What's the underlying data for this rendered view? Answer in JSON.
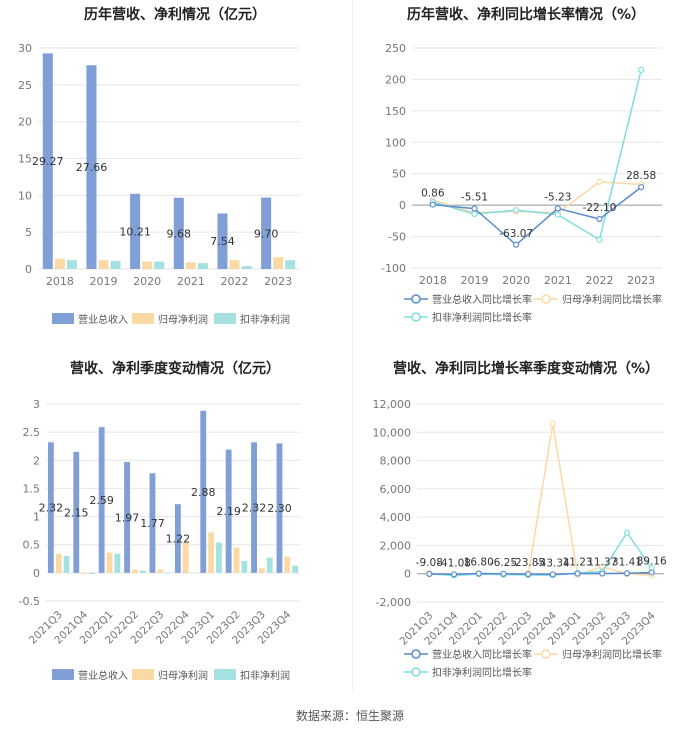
{
  "source": "数据来源：恒生聚源",
  "chart_data": [
    {
      "type": "bar",
      "title": "历年营收、净利情况（亿元）",
      "categories": [
        "2018",
        "2019",
        "2020",
        "2021",
        "2022",
        "2023"
      ],
      "ylim": [
        0,
        30
      ],
      "yticks": [
        0,
        5,
        10,
        15,
        20,
        25,
        30
      ],
      "series": [
        {
          "name": "营业总收入",
          "color": "#7f9fd6",
          "values": [
            29.27,
            27.66,
            10.21,
            9.68,
            7.54,
            9.7
          ],
          "labels": [
            "29.27",
            "27.66",
            "10.21",
            "9.68",
            "7.54",
            "9.70"
          ]
        },
        {
          "name": "归母净利润",
          "color": "#fbd9a4",
          "values": [
            1.4,
            1.2,
            1.0,
            0.9,
            1.2,
            1.6
          ]
        },
        {
          "name": "扣非净利润",
          "color": "#a6e1e2",
          "values": [
            1.2,
            1.1,
            1.0,
            0.8,
            0.4,
            1.2
          ]
        }
      ],
      "grid": true,
      "legend": "bottom"
    },
    {
      "type": "line",
      "title": "历年营收、净利同比增长率情况（%）",
      "categories": [
        "2018",
        "2019",
        "2020",
        "2021",
        "2022",
        "2023"
      ],
      "ylim": [
        -100,
        250
      ],
      "yticks": [
        -100,
        -50,
        0,
        50,
        100,
        150,
        200,
        250
      ],
      "series": [
        {
          "name": "营业总收入同比增长率",
          "color": "#5b8bd0",
          "values": [
            0.86,
            -5.51,
            -63.07,
            -5.23,
            -22.1,
            28.58
          ],
          "labels": [
            "0.86",
            "-5.51",
            "-63.07",
            "-5.23",
            "-22.10",
            "28.58"
          ]
        },
        {
          "name": "归母净利润同比增长率",
          "color": "#fbd9a4",
          "values": [
            8,
            -12,
            -10,
            -12,
            37,
            33
          ]
        },
        {
          "name": "扣非净利润同比增长率",
          "color": "#7fdde0",
          "values": [
            5,
            -14,
            -8,
            -15,
            -55,
            215
          ]
        }
      ],
      "grid": true,
      "legend": "bottom"
    },
    {
      "type": "bar",
      "title": "营收、净利季度变动情况（亿元）",
      "categories": [
        "2021Q3",
        "2021Q4",
        "2022Q1",
        "2022Q2",
        "2022Q3",
        "2022Q4",
        "2023Q1",
        "2023Q2",
        "2023Q3",
        "2023Q4"
      ],
      "ylim": [
        -0.5,
        3
      ],
      "yticks": [
        -0.5,
        0,
        0.5,
        1,
        1.5,
        2,
        2.5,
        3
      ],
      "series": [
        {
          "name": "营业总收入",
          "color": "#7f9fd6",
          "values": [
            2.32,
            2.15,
            2.59,
            1.97,
            1.77,
            1.22,
            2.88,
            2.19,
            2.32,
            2.3
          ],
          "labels": [
            "2.32",
            "2.15",
            "2.59",
            "1.97",
            "1.77",
            "1.22",
            "2.88",
            "2.19",
            "2.32",
            "2.30"
          ]
        },
        {
          "name": "归母净利润",
          "color": "#fbd9a4",
          "values": [
            0.34,
            -0.02,
            0.36,
            0.06,
            0.06,
            0.55,
            0.72,
            0.45,
            0.08,
            0.29
          ]
        },
        {
          "name": "扣非净利润",
          "color": "#a6e1e2",
          "values": [
            0.3,
            -0.02,
            0.34,
            0.04,
            0.0,
            0.0,
            0.54,
            0.21,
            0.27,
            0.13
          ]
        }
      ],
      "grid": true,
      "legend": "bottom"
    },
    {
      "type": "line",
      "title": "营收、净利同比增长率季度变动情况（%）",
      "categories": [
        "2021Q3",
        "2021Q4",
        "2022Q1",
        "2022Q2",
        "2022Q3",
        "2022Q4",
        "2023Q1",
        "2023Q2",
        "2023Q3",
        "2023Q4"
      ],
      "ylim": [
        -2000,
        12000
      ],
      "yticks": [
        -2000,
        0,
        2000,
        4000,
        6000,
        8000,
        10000,
        12000
      ],
      "ytick_labels": [
        "-2,000",
        "0",
        "2,000",
        "4,000",
        "6,000",
        "8,000",
        "10,000",
        "12,000"
      ],
      "series": [
        {
          "name": "营业总收入同比增长率",
          "color": "#5b8bd0",
          "values": [
            -9.08,
            -41.08,
            16.8,
            -6.25,
            -23.85,
            -43.34,
            11.23,
            11.37,
            31.41,
            89.16
          ],
          "labels": [
            "-9.08",
            "-41.08",
            "16.80",
            "-6.25",
            "-23.85",
            "-43.34",
            "11.23",
            "11.37",
            "31.41",
            "89.16"
          ]
        },
        {
          "name": "归母净利润同比增长率",
          "color": "#fbd9a4",
          "values": [
            -30,
            -100,
            -20,
            -50,
            -80,
            10600,
            -100,
            500,
            -20,
            -100
          ]
        },
        {
          "name": "扣非净利润同比增长率",
          "color": "#7fdde0",
          "values": [
            -20,
            -120,
            -30,
            -60,
            -90,
            -100,
            50,
            150,
            2900,
            400
          ]
        }
      ],
      "grid": true,
      "legend": "bottom"
    }
  ]
}
